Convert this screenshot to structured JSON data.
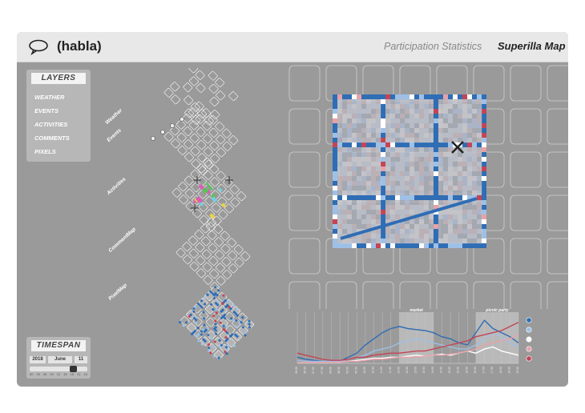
{
  "header": {
    "app_title": "(habla)",
    "nav": {
      "stats": "Participation Statistics",
      "map": "Superilla Map"
    }
  },
  "layers": {
    "title": "LAYERS",
    "items": [
      "WEATHER",
      "EVENTS",
      "ACTIVITIES",
      "COMMENTS",
      "PIXELS"
    ]
  },
  "timespan": {
    "title": "TIMESPAN",
    "year": "2018",
    "month": "June",
    "day": "11",
    "slider_value": 0.75,
    "ticks": [
      "00",
      "03",
      "06",
      "09",
      "12",
      "15",
      "18",
      "21",
      "24"
    ]
  },
  "stack_labels": [
    "Weather",
    "Events",
    "Activities",
    "CommentMap",
    "PixelMap"
  ],
  "colors": {
    "frame": "#9a9a9a",
    "blue_dark": "#2f6db5",
    "blue_light": "#9ec0e6",
    "red": "#c44455",
    "pink": "#e7a1a9",
    "white": "#ffffff"
  },
  "chart_data": {
    "type": "line",
    "annotations": [
      "market",
      "picnic party"
    ],
    "x": [
      "06:00",
      "06:30",
      "07:00",
      "07:30",
      "08:00",
      "08:30",
      "09:00",
      "09:30",
      "10:00",
      "10:30",
      "11:00",
      "11:30",
      "12:00",
      "12:30",
      "13:00",
      "13:30",
      "14:00",
      "14:30",
      "15:00",
      "15:30",
      "16:00",
      "16:30",
      "17:00",
      "17:30",
      "18:00",
      "18:30",
      "19:00"
    ],
    "series": [
      {
        "color": "#2f6db5",
        "values": [
          6,
          4,
          3,
          2,
          2,
          2,
          6,
          10,
          18,
          24,
          30,
          34,
          36,
          34,
          33,
          32,
          30,
          26,
          24,
          20,
          18,
          30,
          42,
          34,
          30,
          26,
          20
        ]
      },
      {
        "color": "#9ec0e6",
        "values": [
          3,
          2,
          2,
          2,
          2,
          2,
          4,
          6,
          8,
          12,
          14,
          16,
          20,
          22,
          24,
          22,
          20,
          18,
          16,
          14,
          14,
          18,
          24,
          30,
          26,
          20,
          16
        ]
      },
      {
        "color": "#ffffff",
        "values": [
          1,
          1,
          1,
          1,
          1,
          1,
          2,
          3,
          4,
          5,
          5,
          6,
          6,
          7,
          8,
          7,
          8,
          9,
          8,
          10,
          12,
          10,
          14,
          16,
          12,
          10,
          8
        ]
      },
      {
        "color": "#e7a1a9",
        "values": [
          1,
          1,
          1,
          1,
          1,
          1,
          2,
          2,
          3,
          4,
          4,
          5,
          6,
          6,
          6,
          7,
          8,
          8,
          9,
          10,
          12,
          14,
          18,
          20,
          22,
          24,
          28
        ]
      },
      {
        "color": "#c44455",
        "values": [
          10,
          8,
          6,
          4,
          3,
          3,
          4,
          6,
          6,
          8,
          9,
          10,
          10,
          11,
          12,
          12,
          14,
          16,
          18,
          20,
          22,
          26,
          28,
          30,
          32,
          36,
          40
        ]
      }
    ],
    "ylim": [
      0,
      50
    ]
  }
}
